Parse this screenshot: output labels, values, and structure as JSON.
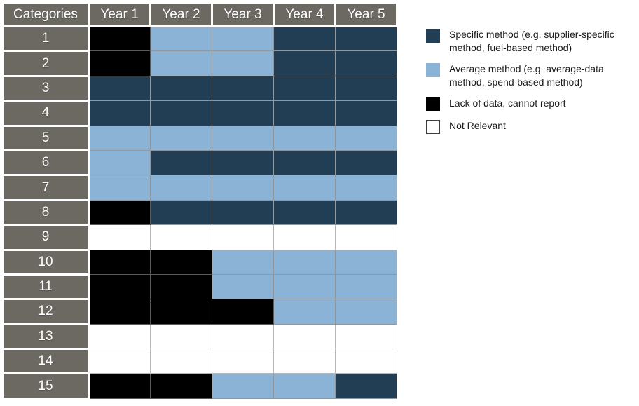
{
  "colors": {
    "specific": "#223E55",
    "average": "#8BB3D6",
    "lack": "#000000",
    "not_relevant": "#FFFFFF",
    "header_bg": "#6C6962",
    "header_text": "#FFFFFF",
    "grid_line": "#8E989E"
  },
  "chart_data": {
    "type": "heatmap",
    "title": "",
    "columns": [
      "Categories",
      "Year 1",
      "Year 2",
      "Year 3",
      "Year 4",
      "Year 5"
    ],
    "row_labels": [
      "1",
      "2",
      "3",
      "4",
      "5",
      "6",
      "7",
      "8",
      "9",
      "10",
      "11",
      "12",
      "13",
      "14",
      "15"
    ],
    "values": [
      [
        "lack",
        "average",
        "average",
        "specific",
        "specific"
      ],
      [
        "lack",
        "average",
        "average",
        "specific",
        "specific"
      ],
      [
        "specific",
        "specific",
        "specific",
        "specific",
        "specific"
      ],
      [
        "specific",
        "specific",
        "specific",
        "specific",
        "specific"
      ],
      [
        "average",
        "average",
        "average",
        "average",
        "average"
      ],
      [
        "average",
        "specific",
        "specific",
        "specific",
        "specific"
      ],
      [
        "average",
        "average",
        "average",
        "average",
        "average"
      ],
      [
        "lack",
        "specific",
        "specific",
        "specific",
        "specific"
      ],
      [
        "not_relevant",
        "not_relevant",
        "not_relevant",
        "not_relevant",
        "not_relevant"
      ],
      [
        "lack",
        "lack",
        "average",
        "average",
        "average"
      ],
      [
        "lack",
        "lack",
        "average",
        "average",
        "average"
      ],
      [
        "lack",
        "lack",
        "lack",
        "average",
        "average"
      ],
      [
        "not_relevant",
        "not_relevant",
        "not_relevant",
        "not_relevant",
        "not_relevant"
      ],
      [
        "not_relevant",
        "not_relevant",
        "not_relevant",
        "not_relevant",
        "not_relevant"
      ],
      [
        "lack",
        "lack",
        "average",
        "average",
        "specific"
      ]
    ],
    "legend": [
      {
        "key": "specific",
        "label": "Specific method (e.g. supplier-specific method, fuel-based method)"
      },
      {
        "key": "average",
        "label": "Average method (e.g. average-data method, spend-based method)"
      },
      {
        "key": "lack",
        "label": "Lack of data, cannot report"
      },
      {
        "key": "not_relevant",
        "label": "Not Relevant"
      }
    ],
    "legend_position": "top-right",
    "grid": true
  }
}
